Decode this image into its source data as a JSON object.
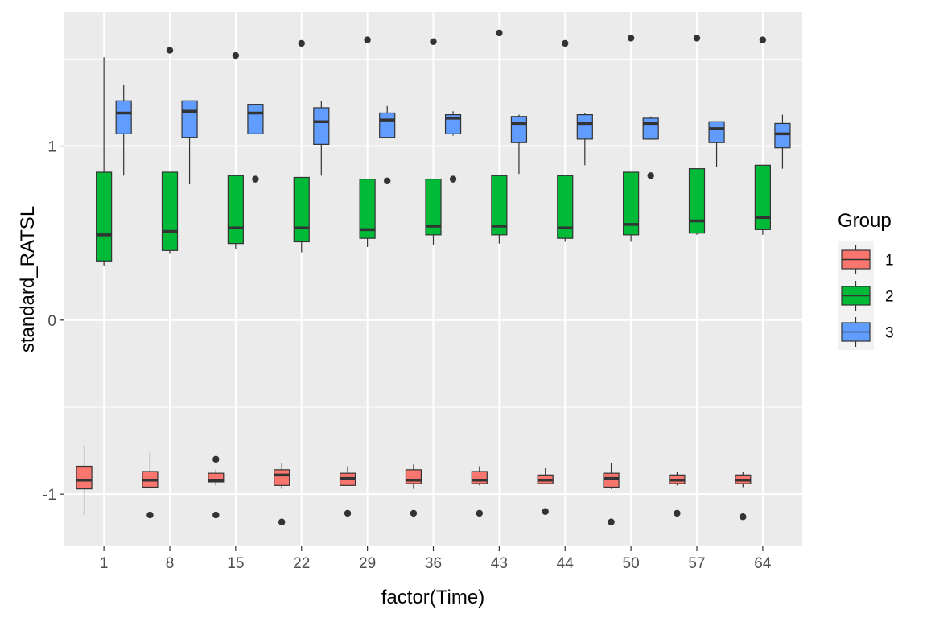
{
  "chart_data": {
    "type": "boxplot",
    "xlabel": "factor(Time)",
    "ylabel": "standard_RATSL",
    "categories": [
      "1",
      "8",
      "15",
      "22",
      "29",
      "36",
      "43",
      "44",
      "50",
      "57",
      "64"
    ],
    "ylim": [
      -1.3,
      1.77
    ],
    "yticks": [
      -1,
      0,
      1
    ],
    "legend": {
      "title": "Group",
      "position": "right"
    },
    "grid": true,
    "series": [
      {
        "name": "1",
        "color": "#F8766D",
        "boxes": [
          {
            "lower": -1.12,
            "q1": -0.97,
            "median": -0.92,
            "q3": -0.84,
            "upper": -0.72,
            "outliers": []
          },
          {
            "lower": -0.97,
            "q1": -0.96,
            "median": -0.92,
            "q3": -0.87,
            "upper": -0.76,
            "outliers": [
              -1.12
            ]
          },
          {
            "lower": -0.95,
            "q1": -0.93,
            "median": -0.92,
            "q3": -0.88,
            "upper": -0.86,
            "outliers": [
              -0.8,
              -1.12
            ]
          },
          {
            "lower": -0.97,
            "q1": -0.95,
            "median": -0.89,
            "q3": -0.86,
            "upper": -0.82,
            "outliers": [
              -1.16
            ]
          },
          {
            "lower": -0.95,
            "q1": -0.95,
            "median": -0.91,
            "q3": -0.88,
            "upper": -0.84,
            "outliers": [
              -1.11
            ]
          },
          {
            "lower": -0.97,
            "q1": -0.94,
            "median": -0.92,
            "q3": -0.86,
            "upper": -0.83,
            "outliers": [
              -1.11
            ]
          },
          {
            "lower": -0.95,
            "q1": -0.94,
            "median": -0.92,
            "q3": -0.87,
            "upper": -0.84,
            "outliers": [
              -1.11
            ]
          },
          {
            "lower": -0.94,
            "q1": -0.94,
            "median": -0.92,
            "q3": -0.89,
            "upper": -0.85,
            "outliers": [
              -1.1
            ]
          },
          {
            "lower": -0.97,
            "q1": -0.96,
            "median": -0.91,
            "q3": -0.88,
            "upper": -0.82,
            "outliers": [
              -1.16
            ]
          },
          {
            "lower": -0.95,
            "q1": -0.94,
            "median": -0.92,
            "q3": -0.89,
            "upper": -0.87,
            "outliers": [
              -1.11
            ]
          },
          {
            "lower": -0.96,
            "q1": -0.94,
            "median": -0.92,
            "q3": -0.89,
            "upper": -0.87,
            "outliers": [
              -1.13
            ]
          }
        ]
      },
      {
        "name": "2",
        "color": "#00BA38",
        "boxes": [
          {
            "lower": 0.31,
            "q1": 0.34,
            "median": 0.49,
            "q3": 0.85,
            "upper": 1.51,
            "outliers": []
          },
          {
            "lower": 0.38,
            "q1": 0.4,
            "median": 0.51,
            "q3": 0.85,
            "upper": 0.85,
            "outliers": [
              1.55
            ]
          },
          {
            "lower": 0.41,
            "q1": 0.44,
            "median": 0.53,
            "q3": 0.83,
            "upper": 0.83,
            "outliers": [
              1.52
            ]
          },
          {
            "lower": 0.39,
            "q1": 0.45,
            "median": 0.53,
            "q3": 0.82,
            "upper": 0.82,
            "outliers": [
              1.59
            ]
          },
          {
            "lower": 0.42,
            "q1": 0.47,
            "median": 0.52,
            "q3": 0.81,
            "upper": 0.81,
            "outliers": [
              1.61
            ]
          },
          {
            "lower": 0.43,
            "q1": 0.49,
            "median": 0.54,
            "q3": 0.81,
            "upper": 0.81,
            "outliers": [
              1.6
            ]
          },
          {
            "lower": 0.44,
            "q1": 0.49,
            "median": 0.54,
            "q3": 0.83,
            "upper": 0.83,
            "outliers": [
              1.65
            ]
          },
          {
            "lower": 0.45,
            "q1": 0.47,
            "median": 0.53,
            "q3": 0.83,
            "upper": 0.83,
            "outliers": [
              1.59
            ]
          },
          {
            "lower": 0.45,
            "q1": 0.49,
            "median": 0.55,
            "q3": 0.85,
            "upper": 0.85,
            "outliers": [
              1.62
            ]
          },
          {
            "lower": 0.49,
            "q1": 0.5,
            "median": 0.57,
            "q3": 0.87,
            "upper": 0.87,
            "outliers": [
              1.62
            ]
          },
          {
            "lower": 0.49,
            "q1": 0.52,
            "median": 0.59,
            "q3": 0.89,
            "upper": 0.89,
            "outliers": [
              1.61
            ]
          }
        ]
      },
      {
        "name": "3",
        "color": "#619CFF",
        "boxes": [
          {
            "lower": 0.83,
            "q1": 1.07,
            "median": 1.19,
            "q3": 1.26,
            "upper": 1.35,
            "outliers": []
          },
          {
            "lower": 0.78,
            "q1": 1.05,
            "median": 1.2,
            "q3": 1.26,
            "upper": 1.26,
            "outliers": []
          },
          {
            "lower": 1.07,
            "q1": 1.07,
            "median": 1.19,
            "q3": 1.24,
            "upper": 1.24,
            "outliers": [
              0.81
            ]
          },
          {
            "lower": 0.83,
            "q1": 1.01,
            "median": 1.14,
            "q3": 1.22,
            "upper": 1.26,
            "outliers": []
          },
          {
            "lower": 1.05,
            "q1": 1.05,
            "median": 1.15,
            "q3": 1.19,
            "upper": 1.23,
            "outliers": [
              0.8
            ]
          },
          {
            "lower": 1.06,
            "q1": 1.07,
            "median": 1.16,
            "q3": 1.18,
            "upper": 1.2,
            "outliers": [
              0.81
            ]
          },
          {
            "lower": 0.84,
            "q1": 1.02,
            "median": 1.13,
            "q3": 1.17,
            "upper": 1.18,
            "outliers": []
          },
          {
            "lower": 0.89,
            "q1": 1.04,
            "median": 1.13,
            "q3": 1.18,
            "upper": 1.19,
            "outliers": []
          },
          {
            "lower": 1.04,
            "q1": 1.04,
            "median": 1.13,
            "q3": 1.16,
            "upper": 1.17,
            "outliers": [
              0.83
            ]
          },
          {
            "lower": 0.88,
            "q1": 1.02,
            "median": 1.1,
            "q3": 1.14,
            "upper": 1.14,
            "outliers": []
          },
          {
            "lower": 0.87,
            "q1": 0.99,
            "median": 1.07,
            "q3": 1.13,
            "upper": 1.18,
            "outliers": []
          }
        ]
      }
    ]
  }
}
